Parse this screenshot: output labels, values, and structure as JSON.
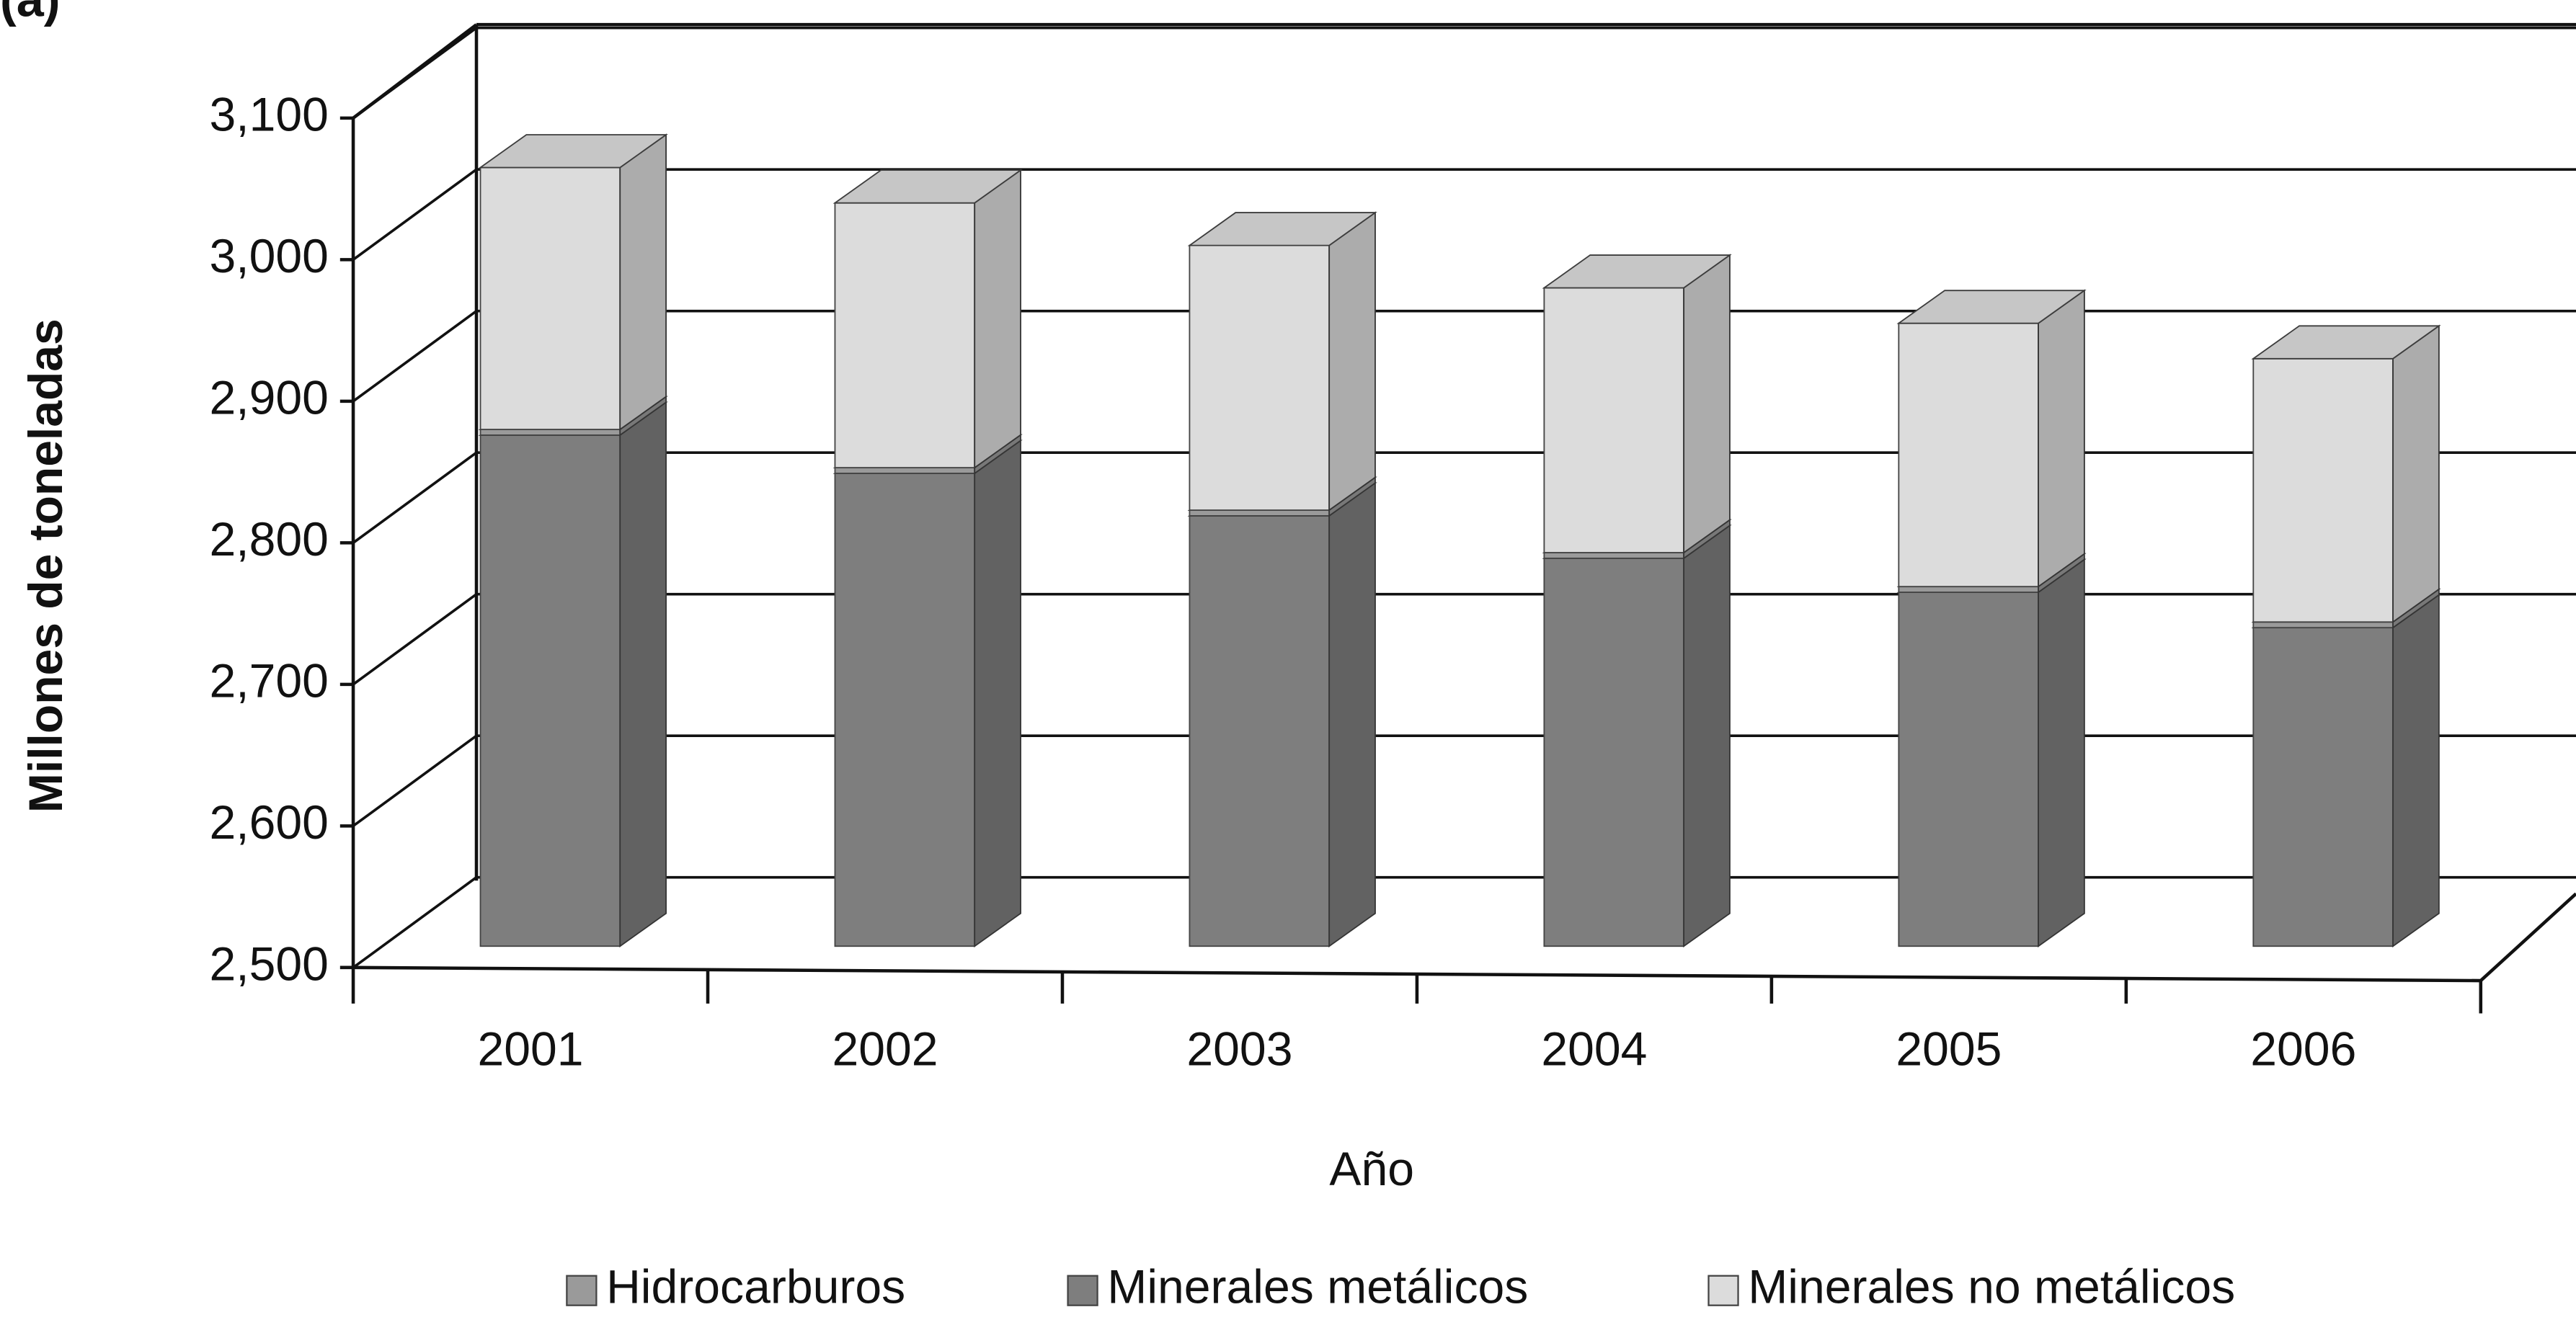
{
  "chart_data": {
    "type": "bar3d-stacked",
    "title": "(a)",
    "x_label": "Año",
    "y_label": "Millones de toneladas",
    "categories": [
      "2001",
      "2002",
      "2003",
      "2004",
      "2005",
      "2006"
    ],
    "series": [
      {
        "name": "Hidrocarburos",
        "color": "#9a9a9a",
        "values": [
          4,
          4,
          4,
          4,
          4,
          4
        ]
      },
      {
        "name": "Minerales metálicos",
        "color": "#7e7e7e",
        "values": [
          2861,
          2834,
          2804,
          2774,
          2750,
          2725
        ]
      },
      {
        "name": "Minerales no metálicos",
        "color": "#dcdcdc",
        "values": [
          185,
          187,
          187,
          187,
          186,
          186
        ]
      }
    ],
    "ylim": [
      2500,
      3100
    ],
    "yticks": [
      {
        "value": 2500,
        "label": "2,500"
      },
      {
        "value": 2600,
        "label": "2,600"
      },
      {
        "value": 2700,
        "label": "2,700"
      },
      {
        "value": 2800,
        "label": "2,800"
      },
      {
        "value": 2900,
        "label": "2,900"
      },
      {
        "value": 3000,
        "label": "3,000"
      },
      {
        "value": 3100,
        "label": "3,100"
      }
    ],
    "grid": true,
    "legend": "bottom"
  }
}
